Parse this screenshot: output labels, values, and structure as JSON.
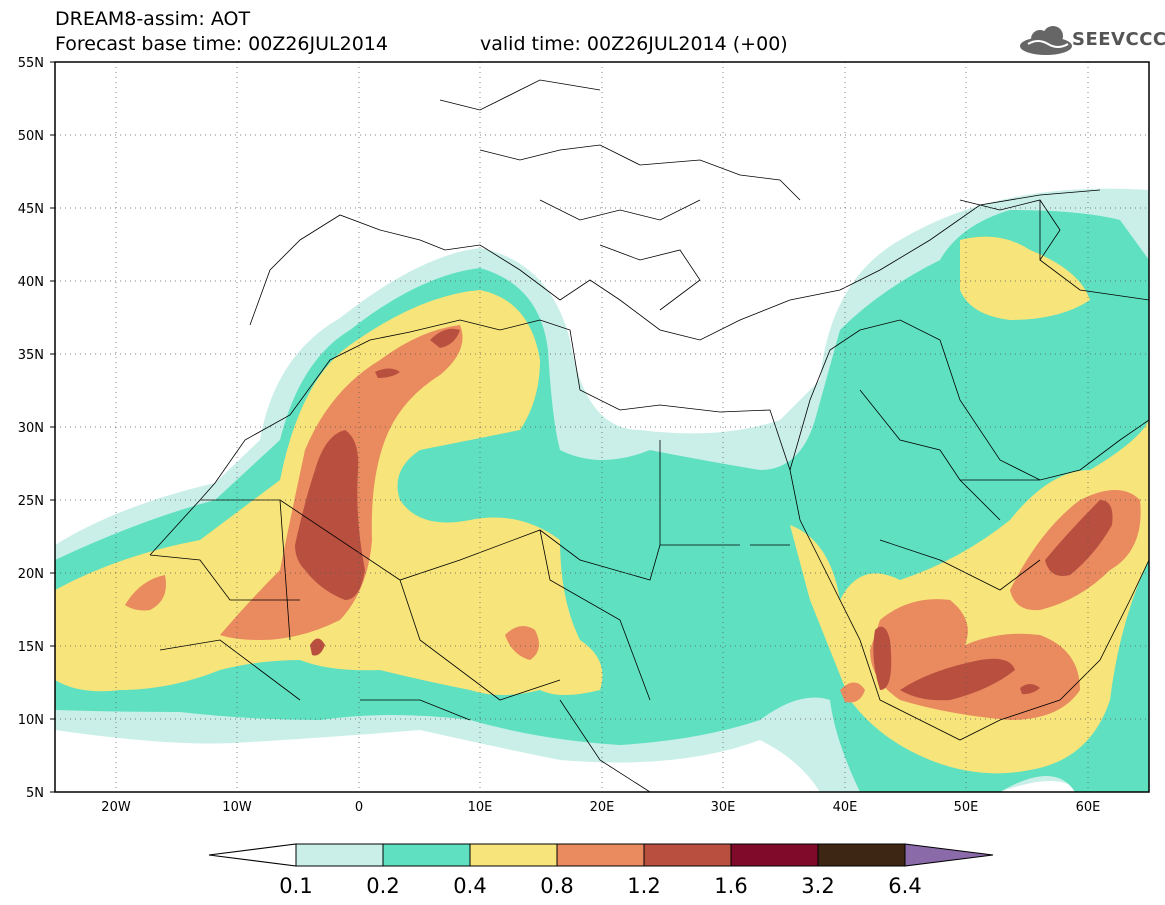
{
  "title": {
    "line1": "DREAM8-assim: AOT",
    "line2": "Forecast base time: 00Z26JUL2014",
    "valid": "valid time: 00Z26JUL2014 (+00)"
  },
  "logo": {
    "text": "SEEVCCC",
    "icon": "cloud-icon"
  },
  "map": {
    "lon_labels": [
      "20W",
      "10W",
      "0",
      "10E",
      "20E",
      "30E",
      "40E",
      "50E",
      "60E"
    ],
    "lat_labels": [
      "55N",
      "50N",
      "45N",
      "40N",
      "35N",
      "30N",
      "25N",
      "20N",
      "15N",
      "10N",
      "5N"
    ],
    "lon_range": [
      -25,
      65
    ],
    "lat_range": [
      5,
      55
    ],
    "grid": "dotted"
  },
  "legend": {
    "labels": [
      "0.1",
      "0.2",
      "0.4",
      "0.8",
      "1.2",
      "1.6",
      "3.2",
      "6.4"
    ],
    "colors": [
      "#ffffff",
      "#c9efe8",
      "#5fe0c0",
      "#f7e47a",
      "#e98a5f",
      "#b9503f",
      "#800a2a",
      "#3e2614",
      "#8a6aa8"
    ]
  }
}
